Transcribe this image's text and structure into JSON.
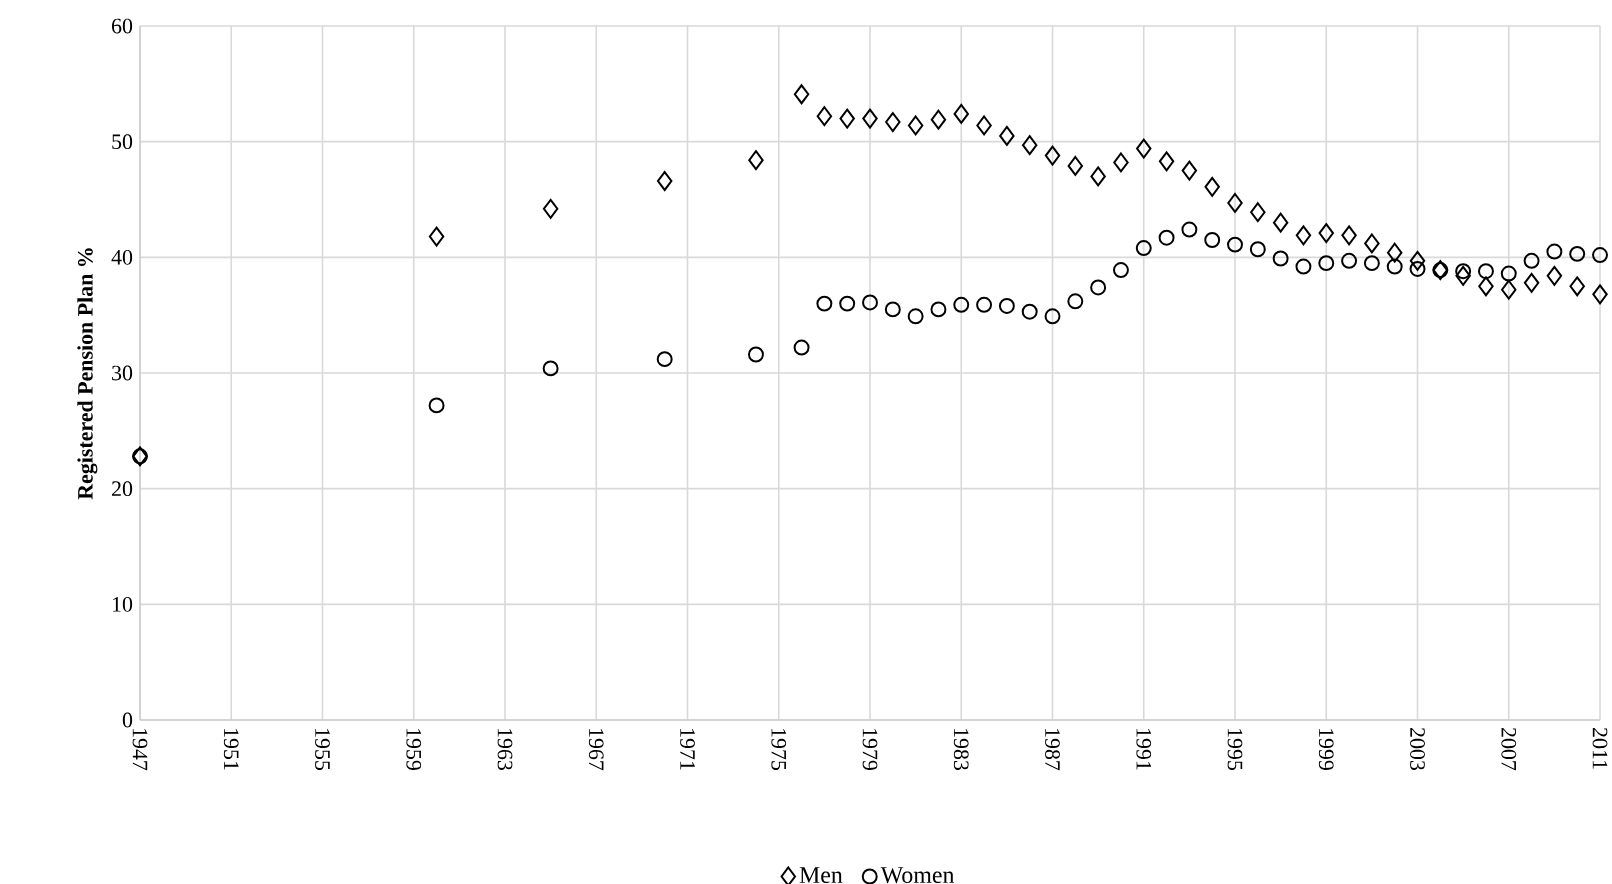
{
  "chart_data": {
    "type": "scatter",
    "ylabel": "Registered Pension Plan %",
    "x": [
      1947,
      1960,
      1965,
      1970,
      1974,
      1976,
      1977,
      1978,
      1979,
      1980,
      1981,
      1982,
      1983,
      1984,
      1985,
      1986,
      1987,
      1988,
      1989,
      1990,
      1991,
      1992,
      1993,
      1994,
      1995,
      1996,
      1997,
      1998,
      1999,
      2000,
      2001,
      2002,
      2003,
      2004,
      2005,
      2006,
      2007,
      2008,
      2009,
      2010,
      2011
    ],
    "series": [
      {
        "name": "Men",
        "color": "#000000",
        "marker": "diamond",
        "values": [
          22.8,
          41.8,
          44.2,
          46.6,
          48.4,
          54.1,
          52.2,
          52.0,
          52.0,
          51.7,
          51.4,
          51.9,
          52.4,
          51.4,
          50.5,
          49.7,
          48.8,
          47.9,
          47.0,
          48.2,
          49.4,
          48.3,
          47.5,
          46.1,
          44.7,
          43.9,
          43.0,
          41.9,
          42.1,
          41.9,
          41.2,
          40.4,
          39.7,
          38.9,
          38.4,
          37.5,
          37.2,
          37.8,
          38.4,
          37.5,
          36.8
        ]
      },
      {
        "name": "Women",
        "color": "#000000",
        "marker": "circle",
        "values": [
          22.8,
          27.2,
          30.4,
          31.2,
          31.6,
          32.2,
          36.0,
          36.0,
          36.1,
          35.5,
          34.9,
          35.5,
          35.9,
          35.9,
          35.8,
          35.3,
          34.9,
          36.2,
          37.4,
          38.9,
          40.8,
          41.7,
          42.4,
          41.5,
          41.1,
          40.7,
          39.9,
          39.2,
          39.5,
          39.7,
          39.5,
          39.2,
          39.0,
          38.9,
          38.8,
          38.8,
          38.6,
          39.7,
          40.5,
          40.3,
          40.2
        ]
      }
    ],
    "xlim": [
      1947,
      2011
    ],
    "xticks": [
      1947,
      1951,
      1955,
      1959,
      1963,
      1967,
      1971,
      1975,
      1979,
      1983,
      1987,
      1991,
      1995,
      1999,
      2003,
      2007,
      2011
    ],
    "ylim": [
      0,
      60
    ],
    "yticks": [
      0,
      10,
      20,
      30,
      40,
      50,
      60
    ],
    "grid": true,
    "legend": "bottom"
  }
}
